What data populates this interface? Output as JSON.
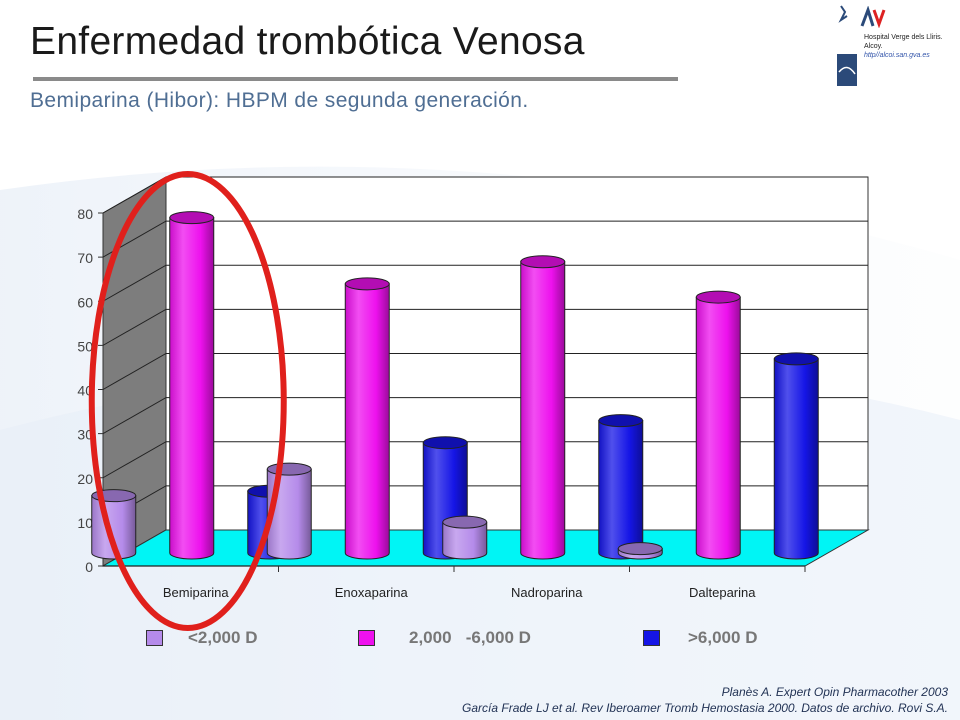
{
  "slide": {
    "title": "Enfermedad trombótica Venosa",
    "subtitle": "Bemiparina  (Hibor): HBPM de segunda generación."
  },
  "logo": {
    "line1": "Hospital Verge dels Lliris.",
    "line2": "Alcoy.",
    "url": "http//alcoi.san.gva.es"
  },
  "colors": {
    "light_purple": "#b58bea",
    "magenta": "#ee11ee",
    "blue": "#1515e6",
    "floor": "#00f5f5",
    "wall": "#7d7d7d",
    "highlight": "#e0201c"
  },
  "chart_data": {
    "type": "bar",
    "style": "3d-clustered-cylinder",
    "categories": [
      "Bemiparina",
      "Enoxaparina",
      "Nadroparina",
      "Dalteparina"
    ],
    "series": [
      {
        "name": "<2,000 D",
        "values": [
          13,
          19,
          7,
          1
        ]
      },
      {
        "name": "2,000   -6,000 D",
        "values": [
          76,
          61,
          66,
          58
        ]
      },
      {
        "name": ">6,000 D",
        "values": [
          14,
          25,
          30,
          44
        ]
      }
    ],
    "ylim": [
      0,
      80
    ],
    "yticks": [
      "0",
      "10",
      "20",
      "30",
      "40",
      "50",
      "60",
      "70",
      "80"
    ],
    "grid": true,
    "legend_position": "bottom",
    "highlighted_category": "Bemiparina"
  },
  "references": {
    "line1": "Planès A. Expert Opin Pharmacother 2003",
    "line2": "García Frade LJ et al. Rev Iberoamer Tromb Hemostasia 2000. Datos de archivo. Rovi S.A."
  }
}
